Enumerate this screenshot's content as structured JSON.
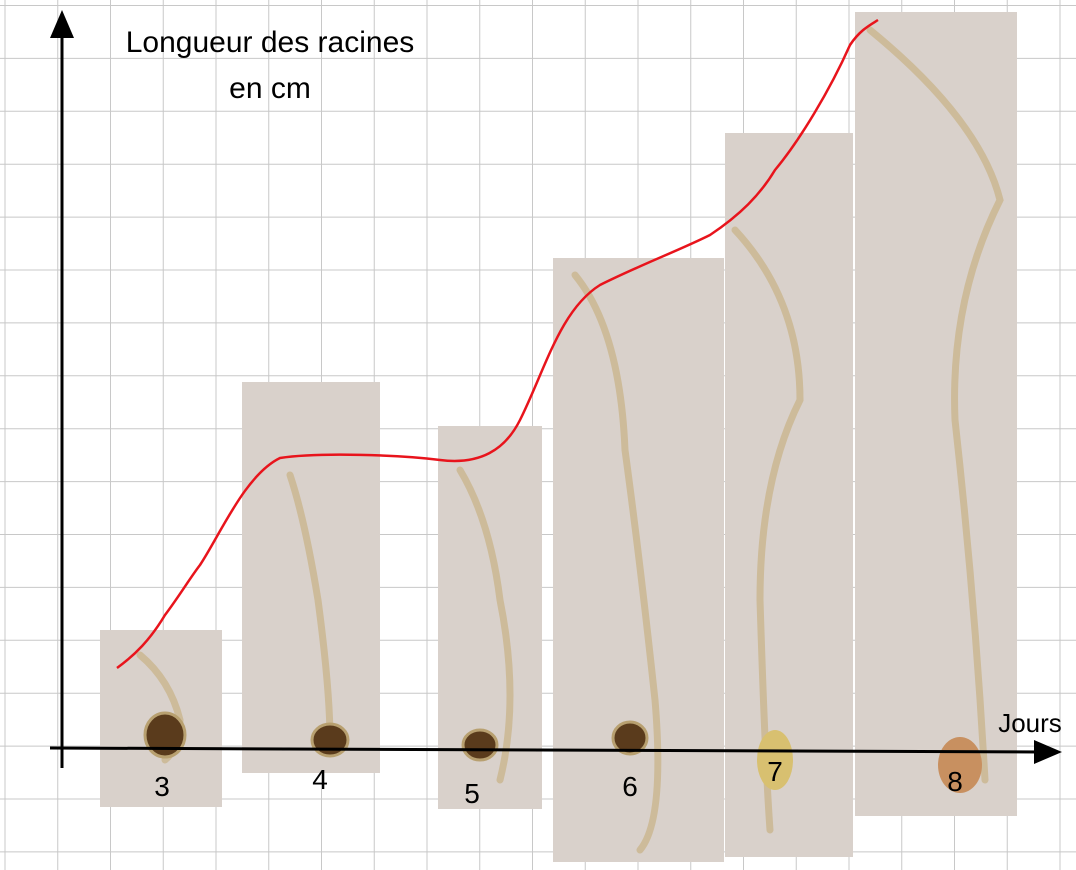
{
  "y_axis_label": [
    "Longueur des racines",
    "en cm"
  ],
  "x_axis_label": "Jours",
  "days": [
    "3",
    "4",
    "5",
    "6",
    "7",
    "8"
  ]
}
